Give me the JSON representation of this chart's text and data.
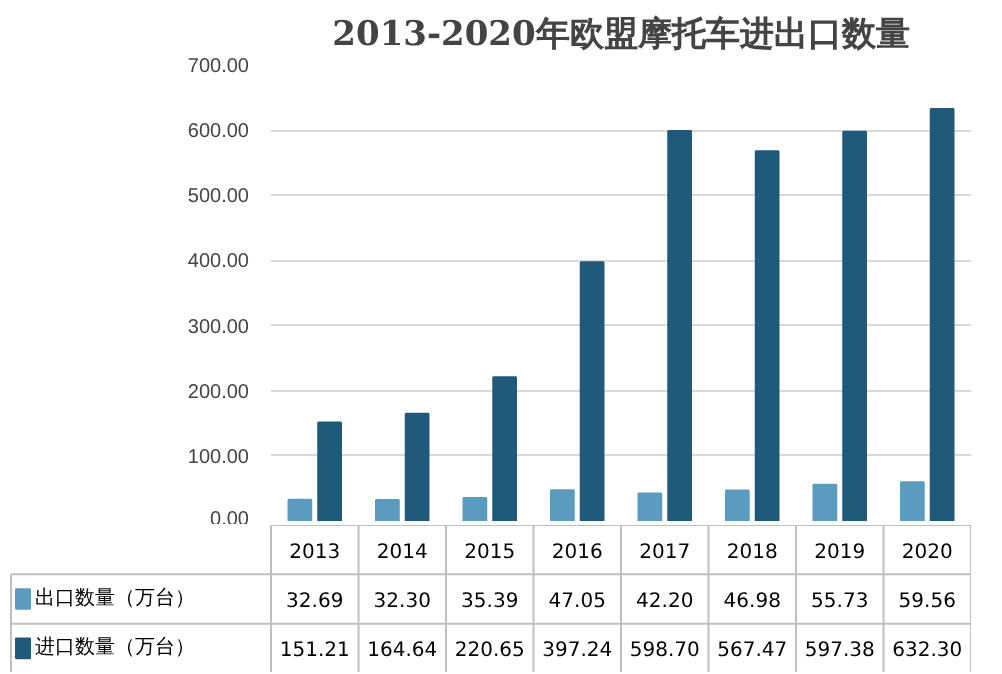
{
  "chart_data": {
    "type": "bar",
    "title": "2013-2020年欧盟摩托车进出口数量",
    "categories": [
      "2013",
      "2014",
      "2015",
      "2016",
      "2017",
      "2018",
      "2019",
      "2020"
    ],
    "series": [
      {
        "name": "出口数量（万台）",
        "color": "#5b9bc0",
        "values": [
          32.69,
          32.3,
          35.39,
          47.05,
          42.2,
          46.98,
          55.73,
          59.56
        ],
        "value_labels": [
          "32.69",
          "32.30",
          "35.39",
          "47.05",
          "42.20",
          "46.98",
          "55.73",
          "59.56"
        ]
      },
      {
        "name": "进口数量（万台）",
        "color": "#1f5a7a",
        "values": [
          151.21,
          164.64,
          220.65,
          397.24,
          598.7,
          567.47,
          597.38,
          632.3
        ],
        "value_labels": [
          "151.21",
          "164.64",
          "220.65",
          "397.24",
          "598.70",
          "567.47",
          "597.38",
          "632.30"
        ]
      }
    ],
    "ylim": [
      0,
      700
    ],
    "yticks": [
      {
        "value": 0,
        "label": "0.00"
      },
      {
        "value": 100,
        "label": "100.00"
      },
      {
        "value": 200,
        "label": "200.00"
      },
      {
        "value": 300,
        "label": "300.00"
      },
      {
        "value": 400,
        "label": "400.00"
      },
      {
        "value": 500,
        "label": "500.00"
      },
      {
        "value": 600,
        "label": "600.00"
      },
      {
        "value": 700,
        "label": "700.00"
      }
    ],
    "grid": "y",
    "legend": "bottom"
  }
}
